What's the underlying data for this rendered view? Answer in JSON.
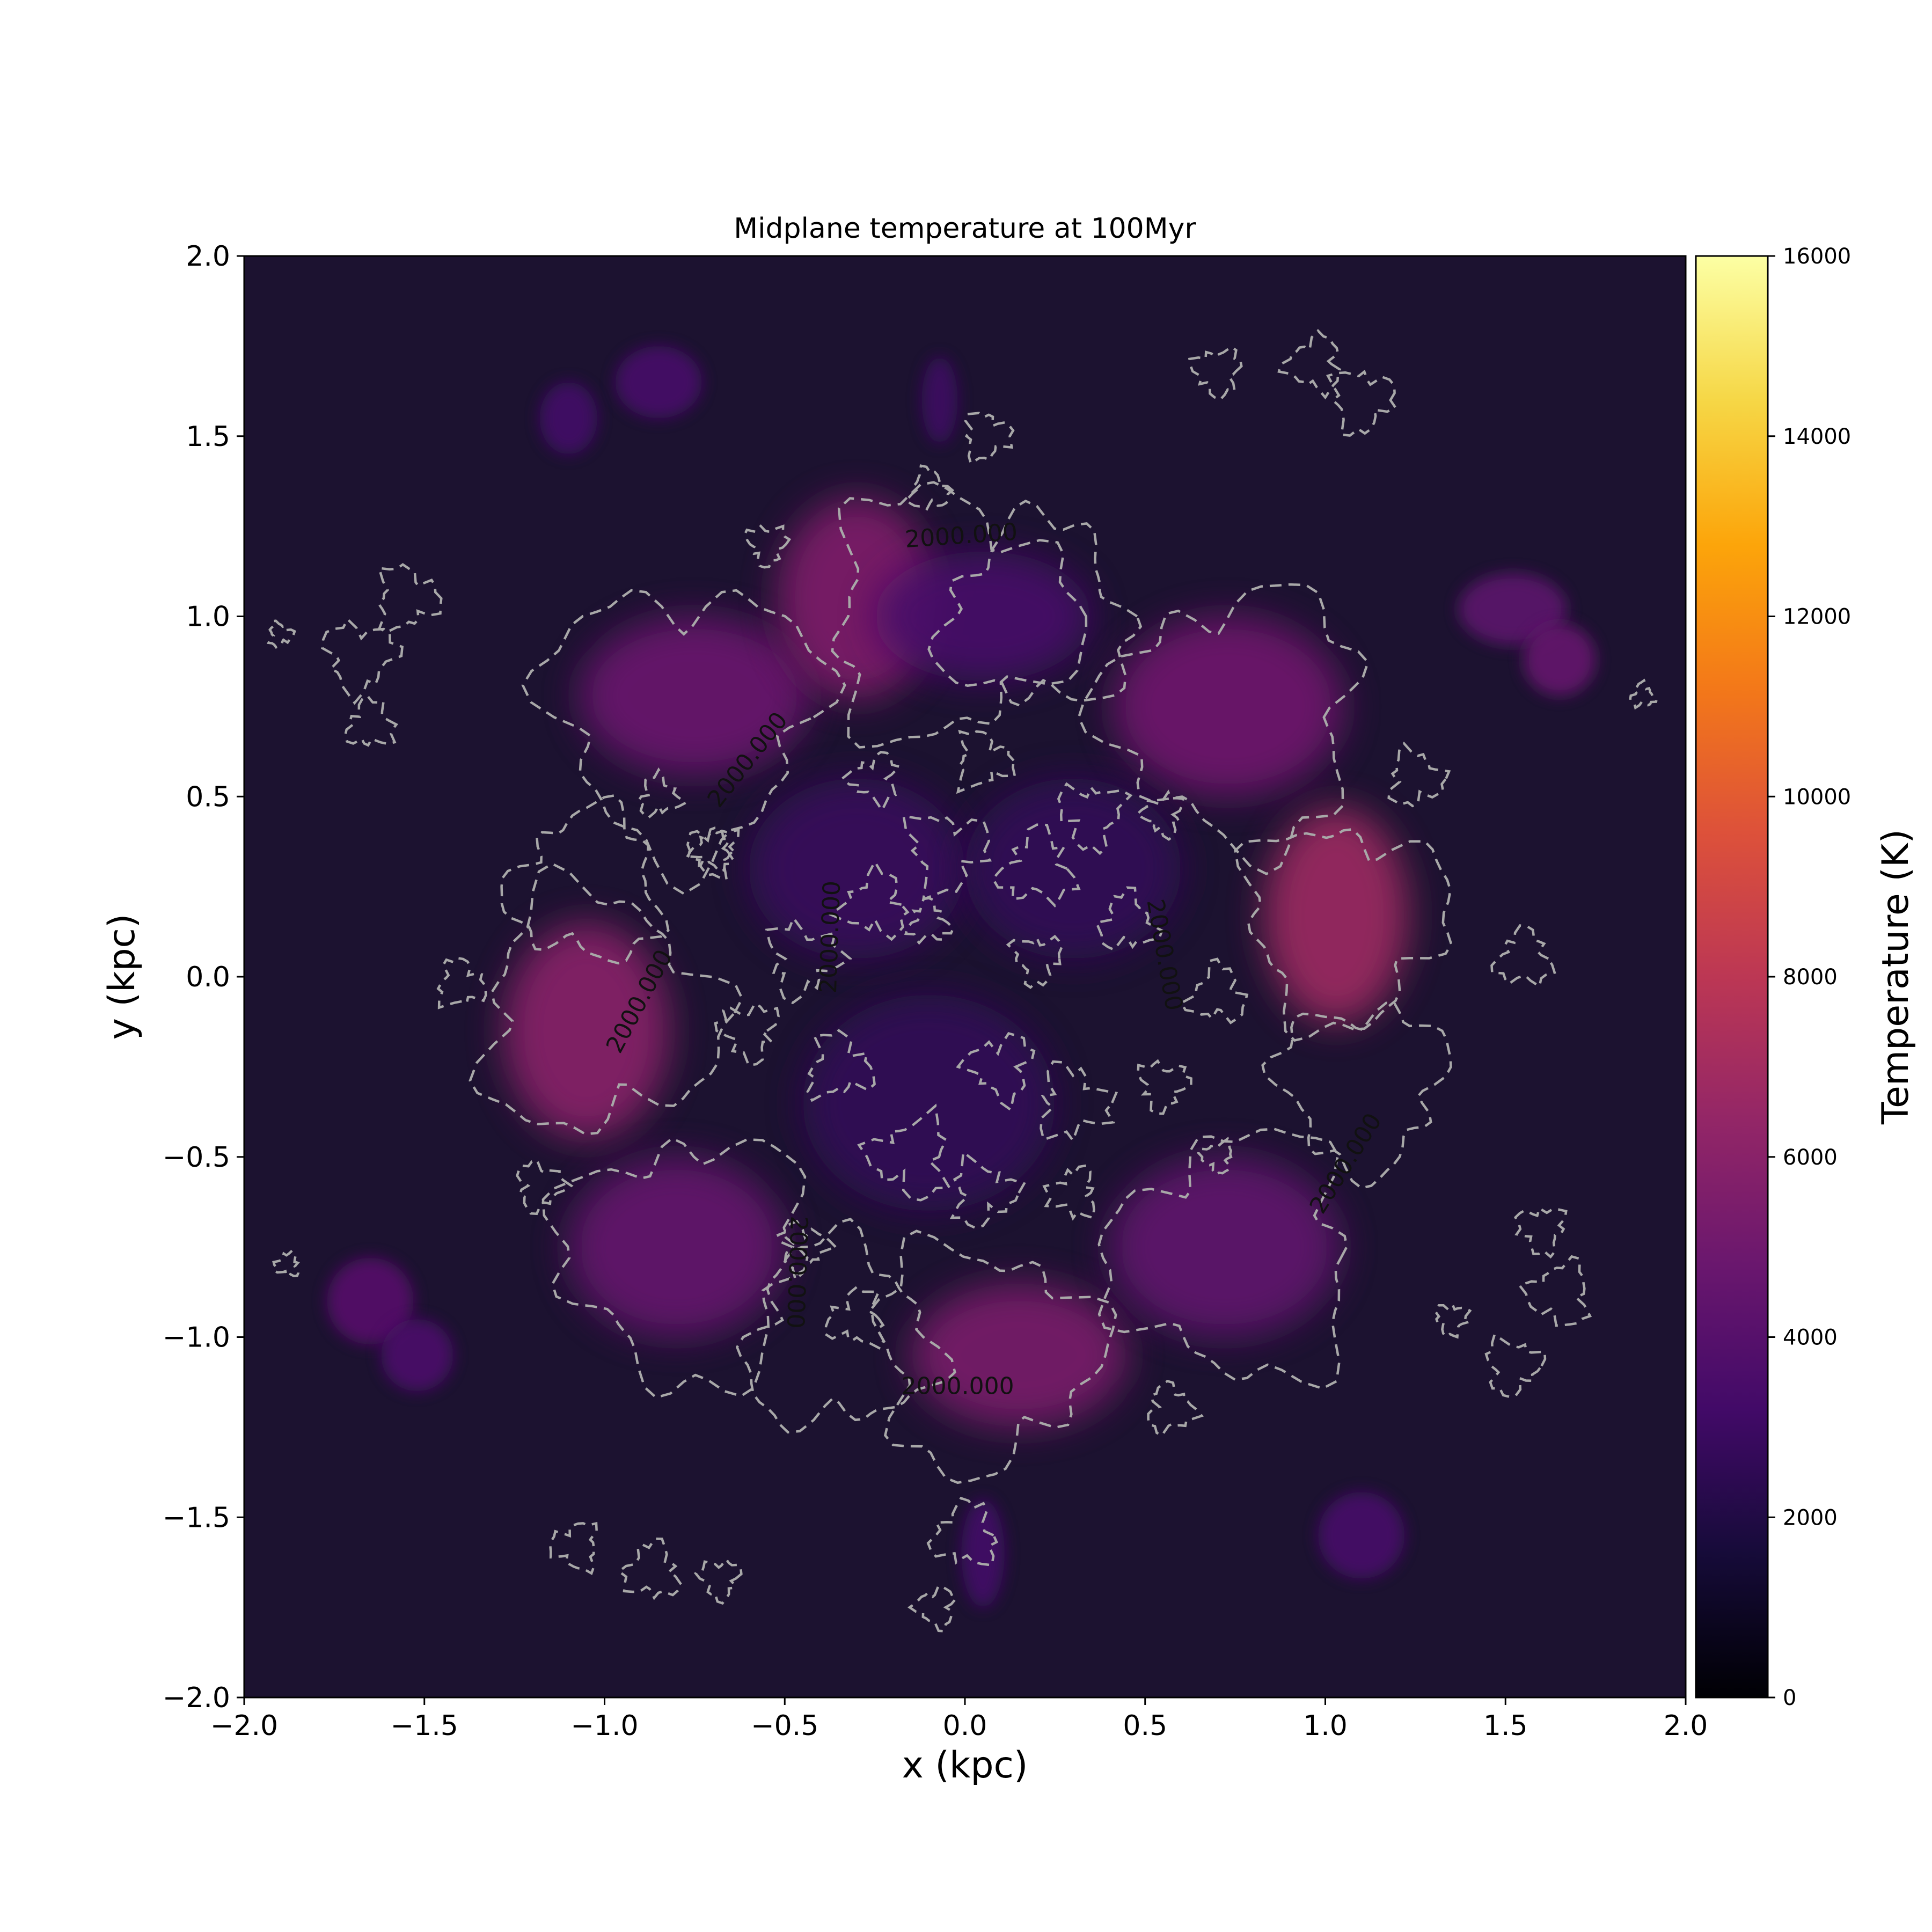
{
  "chart_data": {
    "type": "heatmap",
    "title": "Midplane temperature at 100Myr",
    "xlabel": "x (kpc)",
    "ylabel": "y (kpc)",
    "xlim": [
      -2.0,
      2.0
    ],
    "ylim": [
      -2.0,
      2.0
    ],
    "x_ticks": [
      -2.0,
      -1.5,
      -1.0,
      -0.5,
      0.0,
      0.5,
      1.0,
      1.5,
      2.0
    ],
    "x_tick_labels": [
      "−2.0",
      "−1.5",
      "−1.0",
      "−0.5",
      "0.0",
      "0.5",
      "1.0",
      "1.5",
      "2.0"
    ],
    "y_ticks": [
      2.0,
      1.5,
      1.0,
      0.5,
      0.0,
      -0.5,
      -1.0,
      -1.5,
      -2.0
    ],
    "y_tick_labels": [
      "2.0",
      "1.5",
      "1.0",
      "0.5",
      "0.0",
      "−0.5",
      "−1.0",
      "−1.5",
      "−2.0"
    ],
    "colorbar": {
      "label": "Temperature (K)",
      "range": [
        0,
        16000
      ],
      "ticks": [
        0,
        2000,
        4000,
        6000,
        8000,
        10000,
        12000,
        14000,
        16000
      ],
      "tick_labels": [
        "0",
        "2000",
        "4000",
        "6000",
        "8000",
        "10000",
        "12000",
        "14000",
        "16000"
      ],
      "colormap": "inferno"
    },
    "contour": {
      "level": 2000,
      "style": "dashed",
      "color": "#a8a8a8",
      "label_text": "2000.000",
      "labels": [
        {
          "text": "2000.000",
          "x": -0.01,
          "y": 1.22,
          "angle": -4
        },
        {
          "text": "2000.000",
          "x": -0.6,
          "y": 0.6,
          "angle": -52
        },
        {
          "text": "2000.000",
          "x": -0.37,
          "y": 0.11,
          "angle": -88
        },
        {
          "text": "2000.000",
          "x": -0.9,
          "y": -0.07,
          "angle": -62
        },
        {
          "text": "2000.000",
          "x": 0.55,
          "y": 0.06,
          "angle": 80
        },
        {
          "text": "2000.000",
          "x": 1.06,
          "y": -0.52,
          "angle": -58
        },
        {
          "text": "2000.000",
          "x": -0.47,
          "y": -0.82,
          "angle": 92
        },
        {
          "text": "2000.000",
          "x": -0.02,
          "y": -1.14,
          "angle": 0
        }
      ]
    },
    "hot_regions": [
      {
        "x": -0.75,
        "y": 0.78,
        "rx": 0.32,
        "ry": 0.22,
        "T": 4800
      },
      {
        "x": -0.3,
        "y": 1.05,
        "rx": 0.22,
        "ry": 0.28,
        "T": 5600
      },
      {
        "x": 0.05,
        "y": 1.0,
        "rx": 0.3,
        "ry": 0.18,
        "T": 3400
      },
      {
        "x": 0.73,
        "y": 0.75,
        "rx": 0.32,
        "ry": 0.25,
        "T": 5000
      },
      {
        "x": 1.03,
        "y": 0.17,
        "rx": 0.2,
        "ry": 0.3,
        "T": 6800
      },
      {
        "x": -1.05,
        "y": -0.15,
        "rx": 0.23,
        "ry": 0.3,
        "T": 6000
      },
      {
        "x": -0.8,
        "y": -0.75,
        "rx": 0.3,
        "ry": 0.25,
        "T": 4600
      },
      {
        "x": 0.15,
        "y": -1.05,
        "rx": 0.3,
        "ry": 0.2,
        "T": 5400
      },
      {
        "x": 0.72,
        "y": -0.75,
        "rx": 0.32,
        "ry": 0.25,
        "T": 4400
      },
      {
        "x": -0.3,
        "y": 0.3,
        "rx": 0.3,
        "ry": 0.25,
        "T": 2800
      },
      {
        "x": 0.3,
        "y": 0.3,
        "rx": 0.3,
        "ry": 0.25,
        "T": 2600
      },
      {
        "x": -0.1,
        "y": -0.35,
        "rx": 0.35,
        "ry": 0.3,
        "T": 2600
      },
      {
        "x": 1.52,
        "y": 1.02,
        "rx": 0.15,
        "ry": 0.1,
        "T": 4200
      },
      {
        "x": 1.65,
        "y": 0.88,
        "rx": 0.1,
        "ry": 0.1,
        "T": 4600
      },
      {
        "x": -1.65,
        "y": -0.9,
        "rx": 0.12,
        "ry": 0.12,
        "T": 4000
      },
      {
        "x": -1.52,
        "y": -1.05,
        "rx": 0.1,
        "ry": 0.1,
        "T": 3600
      },
      {
        "x": -0.85,
        "y": 1.65,
        "rx": 0.12,
        "ry": 0.1,
        "T": 3400
      },
      {
        "x": -1.1,
        "y": 1.55,
        "rx": 0.08,
        "ry": 0.1,
        "T": 3200
      },
      {
        "x": 1.1,
        "y": -1.55,
        "rx": 0.12,
        "ry": 0.12,
        "T": 3400
      },
      {
        "x": 0.05,
        "y": -1.6,
        "rx": 0.06,
        "ry": 0.15,
        "T": 3200
      },
      {
        "x": -0.07,
        "y": 1.6,
        "rx": 0.05,
        "ry": 0.12,
        "T": 3000
      }
    ]
  }
}
